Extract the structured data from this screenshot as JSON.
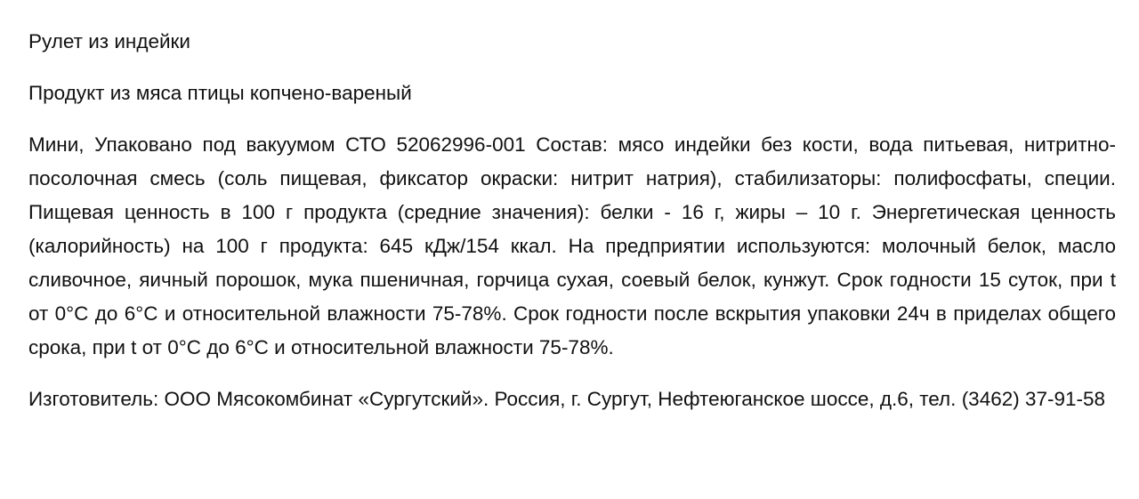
{
  "document": {
    "title": "Рулет из индейки",
    "subtitle": "Продукт из мяса птицы копчено-вареный",
    "description": "Мини, Упаковано под вакуумом СТО 52062996-001 Состав: мясо индейки без кости, вода питьевая, нитритно-посолочная смесь (соль пищевая, фиксатор окраски: нитрит натрия), стабилизаторы: полифосфаты, специи. Пищевая ценность в 100 г продукта (средние значения): белки - 16 г, жиры – 10 г. Энергетическая ценность (калорийность) на 100 г продукта: 645 кДж/154 ккал. На предприятии используются: молочный белок, масло сливочное, яичный порошок, мука пшеничная, горчица сухая, соевый белок, кунжут. Срок годности 15 суток, при t от 0°C до 6°C и относительной влажности 75-78%. Срок годности после вскрытия упаковки 24ч в приделах общего срока, при t от 0°C до 6°C и относительной влажности 75-78%.",
    "manufacturer": "Изготовитель: ООО Мясокомбинат «Сургутский». Россия, г. Сургут, Нефтеюганское шоссе, д.6, тел. (3462) 37-91-58"
  }
}
